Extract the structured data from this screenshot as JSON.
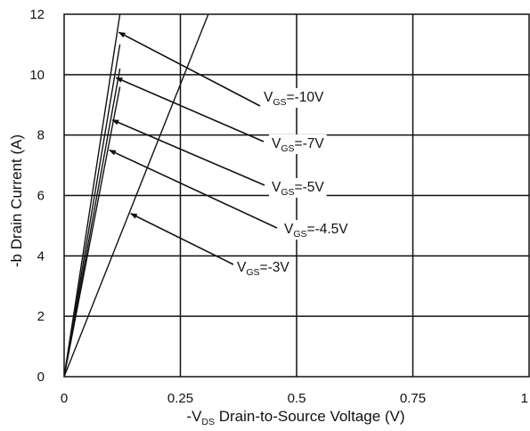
{
  "chart_data": {
    "type": "line",
    "title": "",
    "xlabel": {
      "prefix": "-V",
      "sub": "DS",
      "rest": " Drain-to-Source Voltage (V)"
    },
    "ylabel": "-b Drain Current (A)",
    "xlim": [
      0,
      1
    ],
    "ylim": [
      0,
      12
    ],
    "xticks": [
      "0",
      "0.25",
      "0.5",
      "0.75",
      "1"
    ],
    "yticks": [
      "0",
      "2",
      "4",
      "6",
      "8",
      "10",
      "12"
    ],
    "grid": true,
    "series": [
      {
        "name": "VGS=-10V",
        "label": {
          "pre": "V",
          "sub": "GS",
          "post": "=-10V"
        },
        "x": [
          0,
          0.12
        ],
        "y": [
          0,
          12.0
        ]
      },
      {
        "name": "VGS=-7V",
        "label": {
          "pre": "V",
          "sub": "GS",
          "post": "=-7V"
        },
        "x": [
          0,
          0.12
        ],
        "y": [
          0,
          11.0
        ]
      },
      {
        "name": "VGS=-5V",
        "label": {
          "pre": "V",
          "sub": "GS",
          "post": "=-5V"
        },
        "x": [
          0,
          0.12
        ],
        "y": [
          0,
          10.2
        ]
      },
      {
        "name": "VGS=-4.5V",
        "label": {
          "pre": "V",
          "sub": "GS",
          "post": "=-4.5V"
        },
        "x": [
          0,
          0.12
        ],
        "y": [
          0,
          9.6
        ]
      },
      {
        "name": "VGS=-3V",
        "label": {
          "pre": "V",
          "sub": "GS",
          "post": "=-3V"
        },
        "x": [
          0,
          0.31
        ],
        "y": [
          0,
          12.0
        ]
      }
    ]
  }
}
